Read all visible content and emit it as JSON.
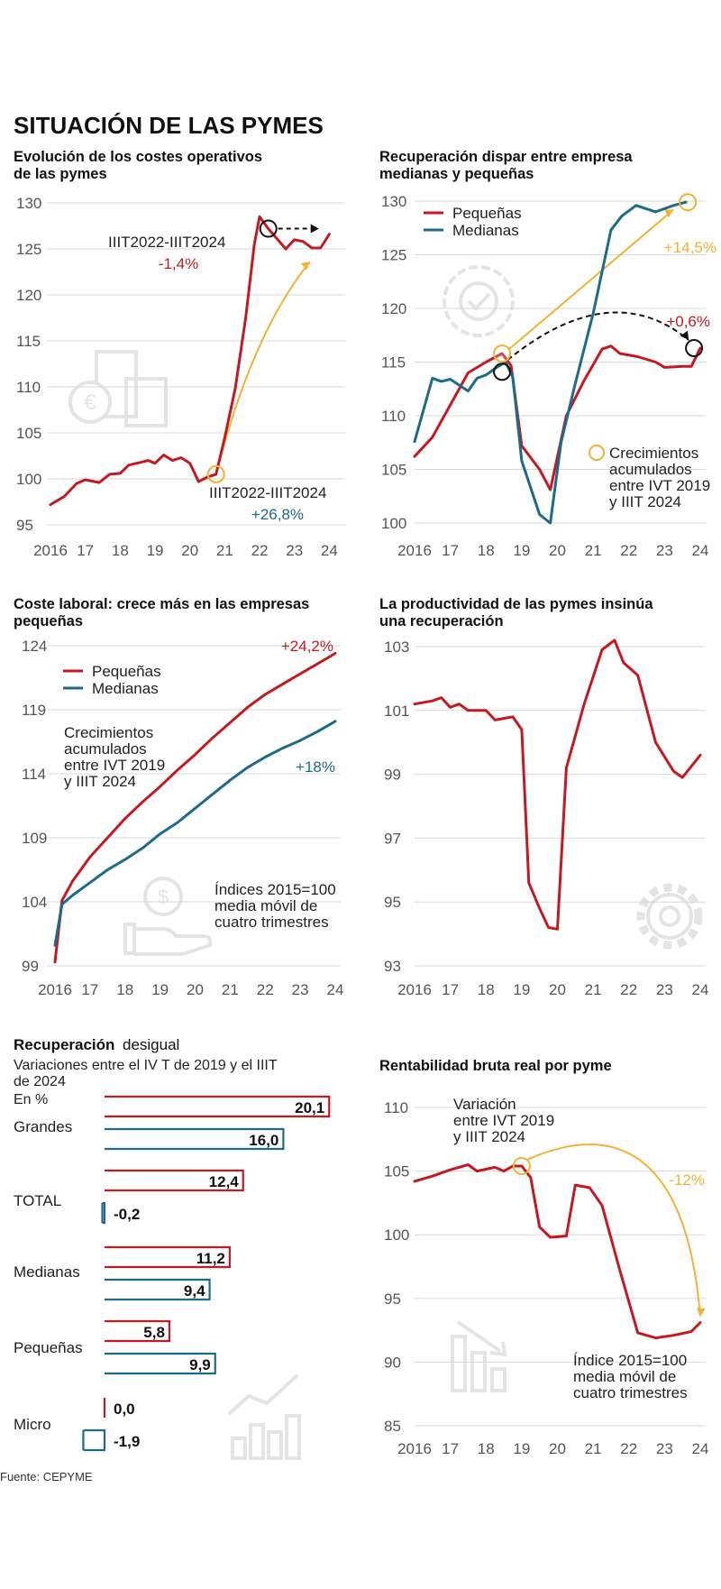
{
  "main_title": "SITUACIÓN DE LAS PYMES",
  "source": "Fuente: CEPYME",
  "colors": {
    "red": "#c41a1f",
    "blue": "#1d6a8a",
    "gold": "#f2b233",
    "grid": "#d8d8d8",
    "axis": "#777777",
    "icon": "#e4e4e4"
  },
  "x_ticks": [
    "2016",
    "17",
    "18",
    "19",
    "20",
    "21",
    "22",
    "23",
    "24"
  ],
  "chart_data": [
    {
      "type": "line",
      "title": "Evolución de los costes operativos de las pymes",
      "title_lines": [
        "Evolución de los costes operativos",
        "de las pymes"
      ],
      "y_ticks": [
        130,
        125,
        120,
        115,
        110,
        105,
        100,
        95
      ],
      "ylim": [
        95,
        130
      ],
      "xlim": [
        2016,
        2024.3
      ],
      "series": [
        {
          "name": "Costes operativos",
          "color": "red",
          "points": [
            [
              2016,
              97.2
            ],
            [
              2016.4,
              98.1
            ],
            [
              2016.75,
              99.5
            ],
            [
              2017,
              99.9
            ],
            [
              2017.4,
              99.6
            ],
            [
              2017.7,
              100.5
            ],
            [
              2018,
              100.6
            ],
            [
              2018.25,
              101.5
            ],
            [
              2018.6,
              101.8
            ],
            [
              2018.8,
              102.0
            ],
            [
              2019,
              101.7
            ],
            [
              2019.25,
              102.6
            ],
            [
              2019.5,
              102.0
            ],
            [
              2019.75,
              102.3
            ],
            [
              2020,
              101.7
            ],
            [
              2020.25,
              99.7
            ],
            [
              2020.5,
              100.2
            ],
            [
              2020.75,
              100.5
            ],
            [
              2021.0,
              104.5
            ],
            [
              2021.3,
              109.8
            ],
            [
              2021.6,
              117.5
            ],
            [
              2021.85,
              125.5
            ],
            [
              2022.0,
              128.5
            ],
            [
              2022.25,
              127.2
            ],
            [
              2022.5,
              126.1
            ],
            [
              2022.75,
              125.0
            ],
            [
              2023.0,
              126.0
            ],
            [
              2023.25,
              125.8
            ],
            [
              2023.5,
              125.1
            ],
            [
              2023.75,
              125.1
            ],
            [
              2024.0,
              126.6
            ]
          ]
        }
      ],
      "annotations": {
        "a1": {
          "label": "IIIT2022-IIIT2024",
          "value": "-1,4%"
        },
        "a2": {
          "label": "IIIT2022-IIIT2024",
          "value": "+26,8%"
        }
      }
    },
    {
      "type": "line",
      "title": "Recuperación dispar entre empresa medianas y pequeñas",
      "title_lines": [
        "Recuperación dispar entre empresa",
        "medianas y pequeñas"
      ],
      "y_ticks": [
        130,
        125,
        120,
        115,
        110,
        105,
        100
      ],
      "ylim": [
        100,
        130
      ],
      "xlim": [
        2016,
        2024
      ],
      "legend": [
        "Pequeñas",
        "Medianas"
      ],
      "series": [
        {
          "name": "Pequeñas",
          "color": "red",
          "points": [
            [
              2016,
              106.2
            ],
            [
              2016.5,
              108.0
            ],
            [
              2017,
              111.0
            ],
            [
              2017.5,
              114.0
            ],
            [
              2018,
              115.0
            ],
            [
              2018.45,
              115.8
            ],
            [
              2018.7,
              114.7
            ],
            [
              2019,
              107.2
            ],
            [
              2019.5,
              105.0
            ],
            [
              2019.8,
              103.1
            ],
            [
              2020.25,
              110.0
            ],
            [
              2020.75,
              113.3
            ],
            [
              2021.25,
              116.2
            ],
            [
              2021.5,
              116.5
            ],
            [
              2021.75,
              115.8
            ],
            [
              2022.25,
              115.5
            ],
            [
              2022.75,
              115.0
            ],
            [
              2023.0,
              114.5
            ],
            [
              2023.5,
              114.6
            ],
            [
              2023.75,
              114.6
            ],
            [
              2024.0,
              116.3
            ]
          ]
        },
        {
          "name": "Medianas",
          "color": "blue",
          "points": [
            [
              2016,
              107.6
            ],
            [
              2016.5,
              113.5
            ],
            [
              2016.75,
              113.2
            ],
            [
              2017,
              113.4
            ],
            [
              2017.5,
              112.3
            ],
            [
              2017.75,
              113.5
            ],
            [
              2018.0,
              113.8
            ],
            [
              2018.3,
              114.5
            ],
            [
              2018.55,
              115.0
            ],
            [
              2018.75,
              113.6
            ],
            [
              2019,
              105.8
            ],
            [
              2019.5,
              100.8
            ],
            [
              2019.8,
              100.0
            ],
            [
              2020.1,
              107.5
            ],
            [
              2020.5,
              113.0
            ],
            [
              2021.0,
              119.5
            ],
            [
              2021.5,
              127.3
            ],
            [
              2021.8,
              128.6
            ],
            [
              2022.2,
              129.6
            ],
            [
              2022.75,
              129.0
            ],
            [
              2023.25,
              129.6
            ],
            [
              2023.6,
              129.9
            ]
          ]
        }
      ],
      "annotations": {
        "yellow": "+14,5%",
        "black": "+0,6%",
        "note": [
          "Crecimientos",
          "acumulados",
          "entre IVT 2019",
          "y IIIT 2024"
        ]
      }
    },
    {
      "type": "line",
      "title": "Coste laboral: crece más en las empresas pequeñas",
      "title_lines": [
        "Coste laboral: crece más en las empresas",
        "pequeñas"
      ],
      "y_ticks": [
        124,
        119,
        114,
        109,
        104,
        99
      ],
      "ylim": [
        99,
        124
      ],
      "xlim": [
        2016,
        2024
      ],
      "legend": [
        "Pequeñas",
        "Medianas"
      ],
      "series": [
        {
          "name": "Pequeñas",
          "color": "red",
          "points": [
            [
              2016,
              99.3
            ],
            [
              2016.2,
              104.1
            ],
            [
              2016.5,
              105.6
            ],
            [
              2017,
              107.5
            ],
            [
              2017.5,
              109.0
            ],
            [
              2018,
              110.5
            ],
            [
              2018.5,
              111.8
            ],
            [
              2019,
              113.0
            ],
            [
              2019.5,
              114.3
            ],
            [
              2020,
              115.5
            ],
            [
              2020.5,
              116.8
            ],
            [
              2021,
              118.0
            ],
            [
              2021.5,
              119.2
            ],
            [
              2022,
              120.2
            ],
            [
              2022.5,
              121.0
            ],
            [
              2023,
              121.8
            ],
            [
              2023.5,
              122.6
            ],
            [
              2024,
              123.4
            ]
          ]
        },
        {
          "name": "Medianas",
          "color": "blue",
          "points": [
            [
              2016,
              100.6
            ],
            [
              2016.2,
              103.8
            ],
            [
              2016.5,
              104.5
            ],
            [
              2017,
              105.5
            ],
            [
              2017.5,
              106.5
            ],
            [
              2018,
              107.3
            ],
            [
              2018.5,
              108.2
            ],
            [
              2019,
              109.3
            ],
            [
              2019.5,
              110.2
            ],
            [
              2020,
              111.3
            ],
            [
              2020.5,
              112.4
            ],
            [
              2021,
              113.5
            ],
            [
              2021.5,
              114.5
            ],
            [
              2022,
              115.3
            ],
            [
              2022.5,
              116.0
            ],
            [
              2023,
              116.6
            ],
            [
              2023.5,
              117.3
            ],
            [
              2024,
              118.1
            ]
          ]
        }
      ],
      "annotations": {
        "red": "+24,2%",
        "blue": "+18%",
        "note1": [
          "Crecimientos",
          "acumulados",
          "entre IVT 2019",
          "y IIIT 2024"
        ],
        "note2": [
          "Índices 2015=100",
          "media móvil de",
          "cuatro trimestres"
        ]
      }
    },
    {
      "type": "line",
      "title": "La productividad de las pymes insinúa una recuperación",
      "title_lines": [
        "La productividad de las pymes insinúa",
        "una recuperación"
      ],
      "y_ticks": [
        103,
        101,
        99,
        97,
        95,
        93
      ],
      "ylim": [
        93,
        103
      ],
      "xlim": [
        2016,
        2024
      ],
      "series": [
        {
          "name": "Productividad",
          "color": "red",
          "points": [
            [
              2016,
              101.2
            ],
            [
              2016.5,
              101.3
            ],
            [
              2016.75,
              101.4
            ],
            [
              2017,
              101.1
            ],
            [
              2017.25,
              101.2
            ],
            [
              2017.5,
              101.0
            ],
            [
              2018,
              101.0
            ],
            [
              2018.25,
              100.7
            ],
            [
              2018.5,
              100.75
            ],
            [
              2018.75,
              100.8
            ],
            [
              2019,
              100.4
            ],
            [
              2019.2,
              95.6
            ],
            [
              2019.5,
              94.8
            ],
            [
              2019.75,
              94.2
            ],
            [
              2020.0,
              94.15
            ],
            [
              2020.25,
              99.2
            ],
            [
              2020.75,
              101.2
            ],
            [
              2021.25,
              102.9
            ],
            [
              2021.6,
              103.2
            ],
            [
              2021.85,
              102.5
            ],
            [
              2022.25,
              102.1
            ],
            [
              2022.75,
              100.0
            ],
            [
              2023.25,
              99.1
            ],
            [
              2023.5,
              98.9
            ],
            [
              2024,
              99.6
            ]
          ]
        }
      ]
    },
    {
      "type": "bar",
      "title": "Recuperación desigual",
      "title_bold": "Recuperación",
      "title_rest": " desigual",
      "subtitle_lines": [
        "Variaciones entre el IV T de 2019 y el IIIT",
        "de 2024"
      ],
      "unit": "En %",
      "categories": [
        "Grandes",
        "TOTAL",
        "Medianas",
        "Pequeñas",
        "Micro"
      ],
      "series": [
        {
          "name": "Pequeñas",
          "color": "red",
          "values": [
            20.1,
            12.4,
            11.2,
            5.8,
            0.0
          ]
        },
        {
          "name": "Medianas",
          "color": "blue",
          "values": [
            16.0,
            -0.2,
            9.4,
            9.9,
            -1.9
          ]
        }
      ],
      "labels": {
        "red": [
          "20,1",
          "12,4",
          "11,2",
          "5,8",
          "0,0"
        ],
        "blue": [
          "16,0",
          "-0,2",
          "9,4",
          "9,9",
          "-1,9"
        ]
      }
    },
    {
      "type": "line",
      "title": "Rentabilidad bruta real por pyme",
      "y_ticks": [
        110,
        105,
        100,
        95,
        90,
        85
      ],
      "ylim": [
        85,
        110
      ],
      "xlim": [
        2016,
        2024
      ],
      "series": [
        {
          "name": "Rentabilidad",
          "color": "red",
          "points": [
            [
              2016,
              104.2
            ],
            [
              2016.5,
              104.6
            ],
            [
              2017,
              105.1
            ],
            [
              2017.5,
              105.5
            ],
            [
              2017.75,
              105.0
            ],
            [
              2018.25,
              105.3
            ],
            [
              2018.5,
              105.0
            ],
            [
              2018.75,
              105.4
            ],
            [
              2019.0,
              105.4
            ],
            [
              2019.25,
              104.5
            ],
            [
              2019.5,
              100.6
            ],
            [
              2019.8,
              99.8
            ],
            [
              2020.25,
              99.9
            ],
            [
              2020.5,
              103.9
            ],
            [
              2020.9,
              103.7
            ],
            [
              2021.25,
              102.3
            ],
            [
              2021.75,
              97.2
            ],
            [
              2022.25,
              92.3
            ],
            [
              2022.75,
              91.9
            ],
            [
              2023.25,
              92.1
            ],
            [
              2023.75,
              92.4
            ],
            [
              2024,
              93.1
            ]
          ]
        }
      ],
      "annotations": {
        "yellow": "-12%",
        "note1": [
          "Variación",
          "entre IVT 2019",
          "y IIIT 2024"
        ],
        "note2": [
          "Índice 2015=100",
          "media móvil de",
          "cuatro trimestres"
        ]
      }
    }
  ]
}
